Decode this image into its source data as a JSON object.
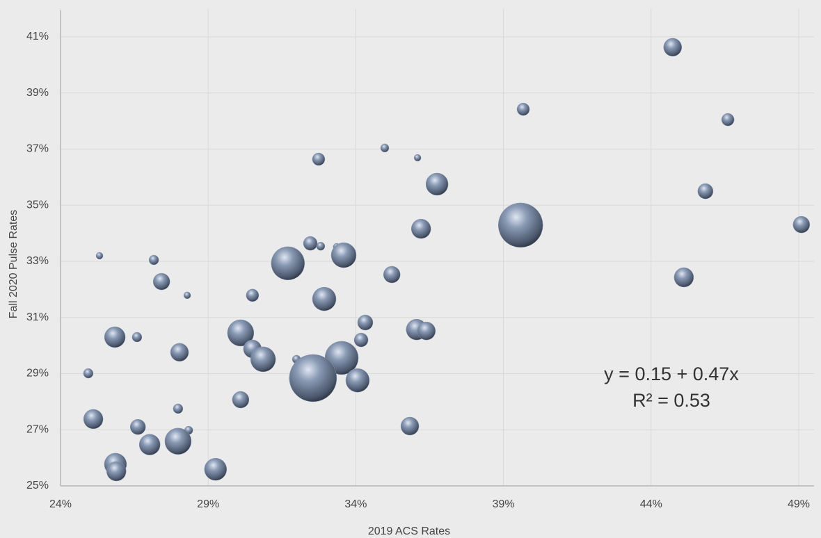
{
  "chart_data": {
    "type": "bubble",
    "xlabel": "2019 ACS Rates",
    "ylabel": "Fall 2020 Pulse Rates",
    "annotations": [
      "y = 0.15 + 0.47x",
      "R² = 0.53"
    ],
    "color": "#8a9ab4",
    "grid": true,
    "xlim": [
      24,
      49.5
    ],
    "ylim": [
      25,
      42
    ],
    "xticks": [
      {
        "value": 24,
        "label": "24%"
      },
      {
        "value": 29,
        "label": "29%"
      },
      {
        "value": 34,
        "label": "34%"
      },
      {
        "value": 39,
        "label": "39%"
      },
      {
        "value": 44,
        "label": "44%"
      },
      {
        "value": 49,
        "label": "49%"
      }
    ],
    "yticks": [
      {
        "value": 25,
        "label": "25%"
      },
      {
        "value": 27,
        "label": "27%"
      },
      {
        "value": 29,
        "label": "29%"
      },
      {
        "value": 31,
        "label": "31%"
      },
      {
        "value": 33,
        "label": "33%"
      },
      {
        "value": 35,
        "label": "35%"
      },
      {
        "value": 37,
        "label": "37%"
      },
      {
        "value": 39,
        "label": "39%"
      },
      {
        "value": 41,
        "label": "41%"
      }
    ],
    "x": [
      44.73,
      39.67,
      46.6,
      34.98,
      36.09,
      32.74,
      36.75,
      45.84,
      39.58,
      49.09,
      36.21,
      32.46,
      32.81,
      33.35,
      33.59,
      31.7,
      25.32,
      27.16,
      27.42,
      35.22,
      45.11,
      28.29,
      30.5,
      32.93,
      34.32,
      25.84,
      26.59,
      30.1,
      36.06,
      36.39,
      34.18,
      30.5,
      28.03,
      30.86,
      33.52,
      31.99,
      32.55,
      34.06,
      24.94,
      30.1,
      27.98,
      25.11,
      26.62,
      28.34,
      35.83,
      27.02,
      27.98,
      25.86,
      25.89,
      29.25
    ],
    "values": [
      40.63,
      38.42,
      38.05,
      37.04,
      36.69,
      36.64,
      35.75,
      35.5,
      34.29,
      34.31,
      34.16,
      33.64,
      33.54,
      33.52,
      33.22,
      32.93,
      33.2,
      33.05,
      32.28,
      32.53,
      32.43,
      31.79,
      31.79,
      31.66,
      30.82,
      30.3,
      30.3,
      30.45,
      30.57,
      30.52,
      30.2,
      29.88,
      29.76,
      29.51,
      29.56,
      29.51,
      28.84,
      28.76,
      29.01,
      28.07,
      27.75,
      27.38,
      27.1,
      26.98,
      27.13,
      26.47,
      26.59,
      25.77,
      25.52,
      25.59
    ],
    "sizes": [
      169,
      81,
      81,
      36,
      25,
      81,
      256,
      121,
      1024,
      144,
      196,
      100,
      36,
      25,
      324,
      576,
      25,
      49,
      144,
      144,
      196,
      25,
      81,
      289,
      121,
      225,
      49,
      361,
      225,
      169,
      100,
      169,
      169,
      324,
      576,
      36,
      1156,
      289,
      49,
      144,
      49,
      196,
      121,
      36,
      169,
      225,
      361,
      256,
      196,
      256
    ]
  }
}
